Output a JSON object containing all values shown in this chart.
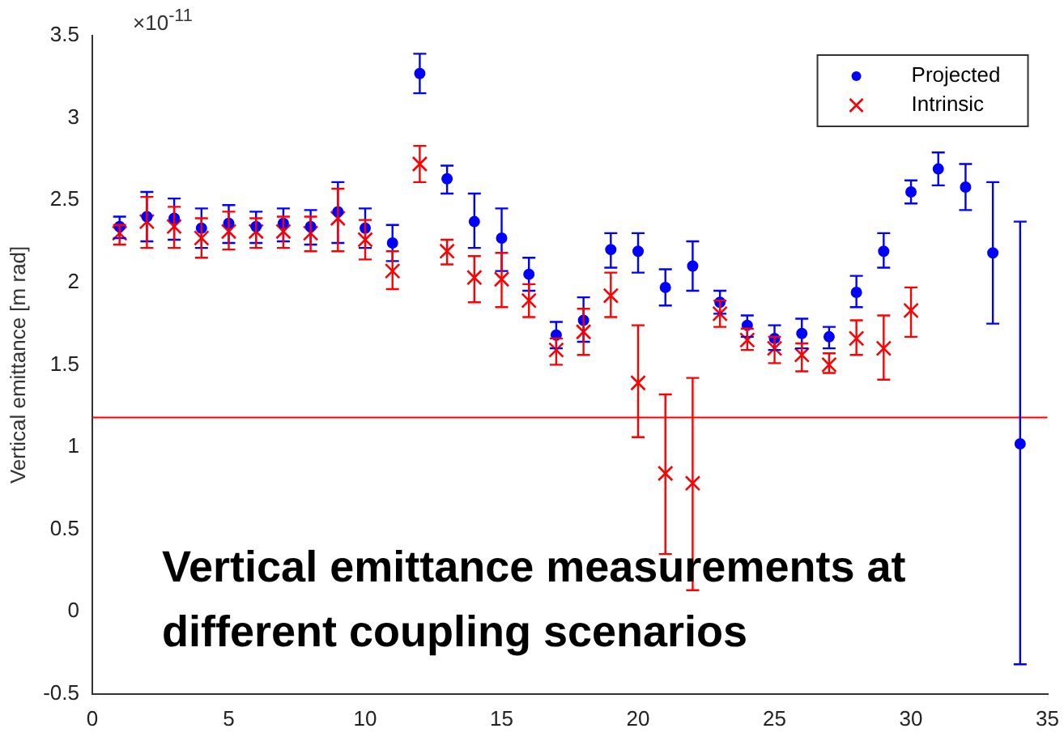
{
  "chart_data": {
    "type": "scatter",
    "ylabel": "Vertical emittance [m rad]",
    "annotations": [
      "×10$^{-11}$",
      "Vertical emittance measurements at different coupling scenarios"
    ],
    "x": [
      1,
      2,
      3,
      4,
      5,
      6,
      7,
      8,
      9,
      10,
      11,
      12,
      13,
      14,
      15,
      16,
      17,
      18,
      19,
      20,
      21,
      22,
      23,
      24,
      25,
      26,
      27,
      28,
      29,
      30,
      31,
      32,
      33,
      34
    ],
    "series": [
      {
        "name": "Projected",
        "color": "#0000ff",
        "marker": "circle",
        "values": [
          2.34,
          2.4,
          2.39,
          2.33,
          2.36,
          2.34,
          2.36,
          2.34,
          2.43,
          2.33,
          2.24,
          3.27,
          2.63,
          2.37,
          2.27,
          2.05,
          1.68,
          1.77,
          2.2,
          2.19,
          1.97,
          2.1,
          1.88,
          1.74,
          1.66,
          1.69,
          1.67,
          1.94,
          2.19,
          2.55,
          2.69,
          2.58,
          2.18,
          1.02
        ],
        "errors": [
          [
            2.27,
            2.4
          ],
          [
            2.25,
            2.55
          ],
          [
            2.26,
            2.51
          ],
          [
            2.21,
            2.45
          ],
          [
            2.24,
            2.47
          ],
          [
            2.24,
            2.43
          ],
          [
            2.25,
            2.45
          ],
          [
            2.23,
            2.44
          ],
          [
            2.24,
            2.61
          ],
          [
            2.21,
            2.45
          ],
          [
            2.13,
            2.35
          ],
          [
            3.15,
            3.39
          ],
          [
            2.54,
            2.71
          ],
          [
            2.21,
            2.54
          ],
          [
            2.07,
            2.45
          ],
          [
            1.95,
            2.15
          ],
          [
            1.6,
            1.76
          ],
          [
            1.64,
            1.91
          ],
          [
            2.09,
            2.3
          ],
          [
            2.06,
            2.3
          ],
          [
            1.86,
            2.08
          ],
          [
            1.95,
            2.25
          ],
          [
            1.81,
            1.95
          ],
          [
            1.67,
            1.8
          ],
          [
            1.59,
            1.74
          ],
          [
            1.6,
            1.78
          ],
          [
            1.6,
            1.73
          ],
          [
            1.85,
            2.04
          ],
          [
            2.09,
            2.3
          ],
          [
            2.48,
            2.62
          ],
          [
            2.59,
            2.79
          ],
          [
            2.44,
            2.72
          ],
          [
            1.75,
            2.61
          ],
          [
            -0.32,
            2.37
          ]
        ]
      },
      {
        "name": "Intrinsic",
        "color": "#ff0000",
        "marker": "cross",
        "values": [
          2.3,
          2.37,
          2.34,
          2.27,
          2.31,
          2.31,
          2.31,
          2.3,
          2.39,
          2.26,
          2.07,
          2.72,
          2.19,
          2.03,
          2.02,
          1.89,
          1.59,
          1.7,
          1.92,
          1.39,
          0.84,
          0.78,
          1.81,
          1.65,
          1.6,
          1.56,
          1.5,
          1.66,
          1.6,
          1.83,
          null,
          null,
          null,
          null
        ],
        "errors": [
          [
            2.23,
            2.35
          ],
          [
            2.21,
            2.52
          ],
          [
            2.21,
            2.46
          ],
          [
            2.15,
            2.39
          ],
          [
            2.2,
            2.43
          ],
          [
            2.21,
            2.39
          ],
          [
            2.21,
            2.4
          ],
          [
            2.19,
            2.4
          ],
          [
            2.19,
            2.57
          ],
          [
            2.14,
            2.38
          ],
          [
            1.96,
            2.19
          ],
          [
            2.61,
            2.83
          ],
          [
            2.11,
            2.26
          ],
          [
            1.88,
            2.16
          ],
          [
            1.85,
            2.18
          ],
          [
            1.79,
            1.99
          ],
          [
            1.5,
            1.66
          ],
          [
            1.56,
            1.84
          ],
          [
            1.79,
            2.06
          ],
          [
            1.06,
            1.74
          ],
          [
            0.35,
            1.32
          ],
          [
            0.13,
            1.42
          ],
          [
            1.73,
            1.89
          ],
          [
            1.59,
            1.72
          ],
          [
            1.51,
            1.67
          ],
          [
            1.46,
            1.63
          ],
          [
            1.45,
            1.57
          ],
          [
            1.56,
            1.77
          ],
          [
            1.41,
            1.8
          ],
          [
            1.67,
            1.97
          ],
          null,
          null,
          null,
          null
        ]
      }
    ],
    "xlim": [
      0,
      35
    ],
    "xticks": [
      0,
      5,
      10,
      15,
      20,
      25,
      30,
      35
    ],
    "ylim": [
      -0.5,
      3.5
    ],
    "yticks": [
      -0.5,
      0,
      0.5,
      1,
      1.5,
      2,
      2.5,
      3,
      3.5
    ],
    "ref_lines": [
      {
        "axis": "y",
        "value": 1.18,
        "color": "#ff0000"
      }
    ],
    "legend": "top right",
    "grid": false
  }
}
